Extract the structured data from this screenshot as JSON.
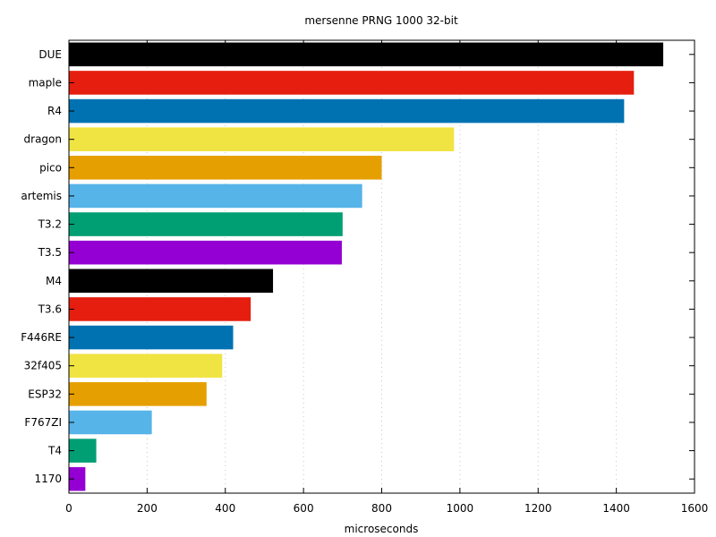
{
  "chart_data": {
    "type": "bar",
    "orientation": "horizontal",
    "title": "mersenne PRNG 1000 32-bit",
    "xlabel": "microseconds",
    "ylabel": "",
    "xlim": [
      0,
      1600
    ],
    "xticks": [
      0,
      200,
      400,
      600,
      800,
      1000,
      1200,
      1400,
      1600
    ],
    "grid": "vertical-dotted",
    "categories": [
      "DUE",
      "maple",
      "R4",
      "dragon",
      "pico",
      "artemis",
      "T3.2",
      "T3.5",
      "M4",
      "T3.6",
      "F446RE",
      "32f405",
      "ESP32",
      "F767ZI",
      "T4",
      "1170"
    ],
    "values": [
      1520,
      1445,
      1420,
      985,
      800,
      750,
      700,
      698,
      522,
      465,
      420,
      392,
      352,
      212,
      70,
      42
    ],
    "colors": [
      "#000000",
      "#e51e10",
      "#0072b2",
      "#f0e442",
      "#e69f00",
      "#56b4e9",
      "#009e73",
      "#9400d3",
      "#000000",
      "#e51e10",
      "#0072b2",
      "#f0e442",
      "#e69f00",
      "#56b4e9",
      "#009e73",
      "#9400d3"
    ]
  }
}
